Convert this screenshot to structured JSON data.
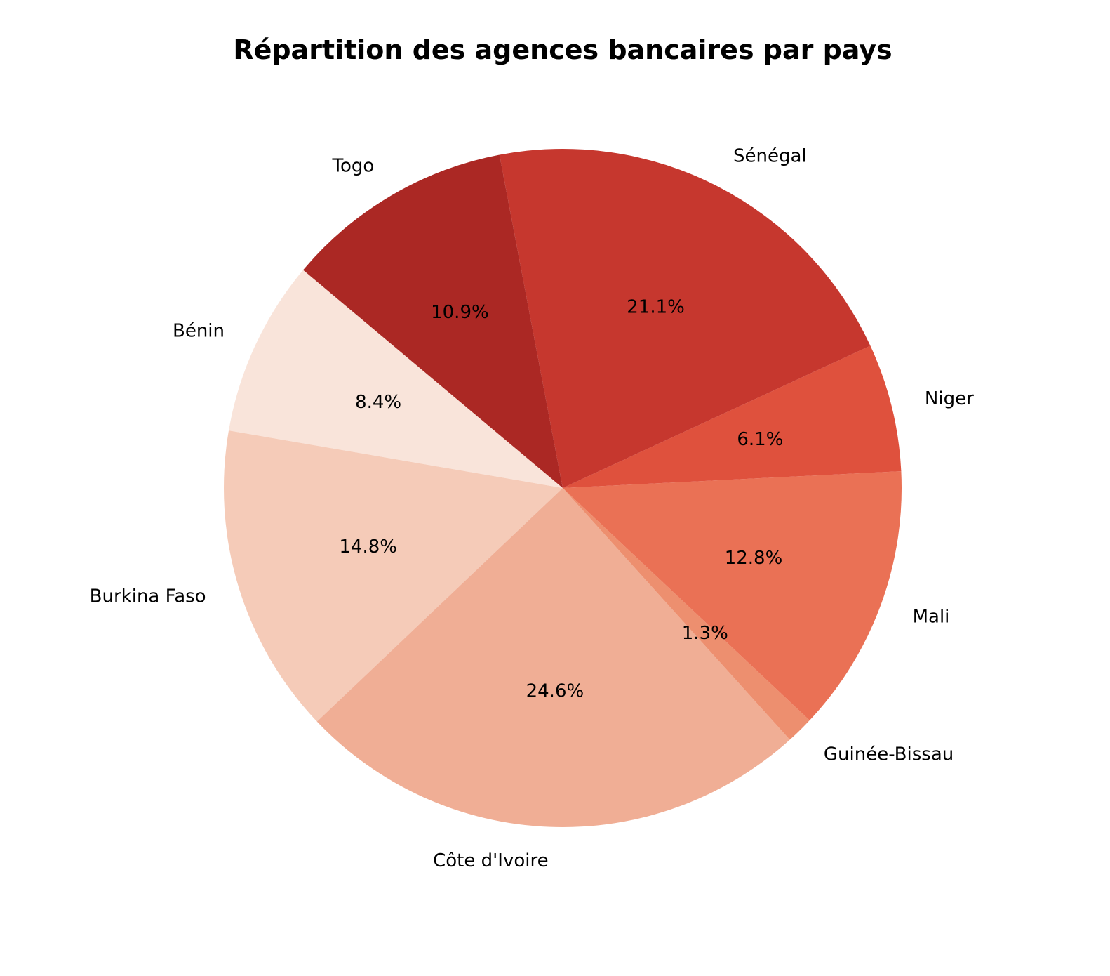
{
  "chart_data": {
    "type": "pie",
    "title": "Répartition des agences bancaires par pays",
    "categories": [
      "Bénin",
      "Burkina Faso",
      "Côte d'Ivoire",
      "Guinée-Bissau",
      "Mali",
      "Niger",
      "Sénégal",
      "Togo"
    ],
    "values": [
      8.4,
      14.8,
      24.6,
      1.3,
      12.8,
      6.1,
      21.1,
      10.9
    ],
    "percent_labels": [
      "8.4%",
      "14.8%",
      "24.6%",
      "1.3%",
      "12.8%",
      "6.1%",
      "21.1%",
      "10.9%"
    ],
    "colors": [
      "#f9e4da",
      "#f5cbb8",
      "#f0ae95",
      "#ed8f6f",
      "#ea7155",
      "#df513d",
      "#c6372e",
      "#ab2824"
    ],
    "start_angle_deg": 140,
    "direction": "counterclockwise",
    "grid": false,
    "legend": "none"
  }
}
